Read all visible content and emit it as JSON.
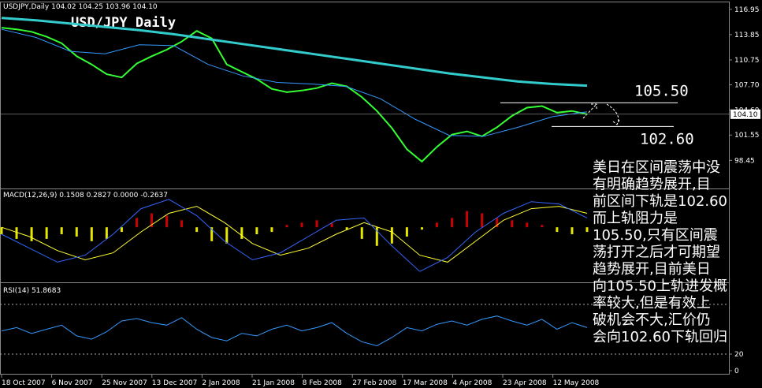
{
  "chart_data": [
    {
      "type": "line",
      "title": "USD/JPY Daily",
      "header": "USDJPY,Daily  104.02 104.25 103.96 104.10",
      "ylim": [
        95.1,
        117.8
      ],
      "yticks": [
        116.95,
        113.85,
        110.75,
        {
          "value": 107.7,
          "label": "107.70"
        },
        {
          "value": 104.6,
          "label": "104.60"
        },
        101.55,
        98.45
      ],
      "current": {
        "value": 104.1,
        "label": "104.10"
      },
      "levels": [
        {
          "value": 105.5,
          "label": "105.50"
        },
        {
          "value": 102.6,
          "label": "102.60"
        }
      ],
      "x_labels": [
        "18 Oct 2007",
        "6 Nov 2007",
        "25 Nov 2007",
        "13 Dec 2007",
        "2 Jan 2008",
        "21 Jan 2008",
        "8 Feb 2008",
        "27 Feb 2008",
        "17 Mar 2008",
        "4 Apr 2008",
        "23 Apr 2008",
        "12 May 2008"
      ],
      "series": [
        {
          "color": "#33ff33",
          "values": [
            114.7,
            114.5,
            114.2,
            113.6,
            112.8,
            111.2,
            110.2,
            109.0,
            108.6,
            110.3,
            111.2,
            112.0,
            113.0,
            114.3,
            113.4,
            110.2,
            109.3,
            108.4,
            107.2,
            106.8,
            107.0,
            107.3,
            107.9,
            107.5,
            106.2,
            104.5,
            102.4,
            99.8,
            98.3,
            100.1,
            101.6,
            102.0,
            101.4,
            102.5,
            103.9,
            104.9,
            105.1,
            104.3,
            104.5,
            104.1
          ]
        },
        {
          "color": "#33cccc",
          "values": [
            115.9,
            115.6,
            115.2,
            114.8,
            114.4,
            113.9,
            113.3,
            112.7,
            112.1,
            111.5,
            110.9,
            110.3,
            109.7,
            109.1,
            108.6,
            108.1,
            107.8,
            107.6
          ]
        },
        {
          "color": "#3399ff",
          "values": [
            114.5,
            113.5,
            111.8,
            111.5,
            112.6,
            112.5,
            110.2,
            108.8,
            108.0,
            107.8,
            107.5,
            106.0,
            103.5,
            101.5,
            101.4,
            102.5,
            103.8,
            104.4
          ]
        }
      ]
    },
    {
      "type": "macd",
      "header": "MACD(12,26,9) 0.1508 0.2827 0.0000 -0.2637",
      "ylim": [
        -2.3,
        1.6
      ],
      "up_color": "#cc0000",
      "down_color": "#e6e600",
      "histogram": [
        -0.3,
        -0.5,
        -0.6,
        -0.5,
        -0.3,
        -0.4,
        -0.6,
        -0.5,
        -0.2,
        0.4,
        0.6,
        0.5,
        0.3,
        -0.2,
        -0.6,
        -0.7,
        -0.5,
        -0.3,
        -0.2,
        0.1,
        0.2,
        0.3,
        0.2,
        -0.1,
        -0.5,
        -0.8,
        -0.7,
        -0.4,
        -0.1,
        0.2,
        0.4,
        0.7,
        0.6,
        0.4,
        0.3,
        0.2,
        0.1,
        -0.2,
        -0.3,
        -0.2
      ],
      "series": [
        {
          "color": "#ffff33",
          "values": [
            0.0,
            -0.4,
            -1.0,
            -1.4,
            -1.1,
            -0.2,
            0.6,
            0.9,
            0.2,
            -0.7,
            -1.2,
            -0.9,
            -0.3,
            0.2,
            -0.2,
            -1.2,
            -1.5,
            -0.6,
            0.3,
            0.8,
            0.9,
            0.6
          ]
        },
        {
          "color": "#3366ff",
          "values": [
            -0.3,
            -0.9,
            -1.5,
            -1.2,
            -0.3,
            0.8,
            1.2,
            0.5,
            -0.6,
            -1.4,
            -1.1,
            -0.4,
            0.3,
            0.4,
            -0.8,
            -1.9,
            -1.3,
            -0.2,
            0.6,
            1.1,
            1.0,
            0.4
          ]
        }
      ]
    },
    {
      "type": "rsi",
      "header": "RSI(14) 51.8683",
      "ylim": [
        0,
        100
      ],
      "yticks": [
        20,
        0
      ],
      "levels": [
        80,
        20
      ],
      "series": [
        {
          "color": "#3399ff",
          "values": [
            48,
            52,
            45,
            50,
            55,
            42,
            38,
            47,
            60,
            63,
            58,
            55,
            64,
            50,
            40,
            36,
            45,
            42,
            50,
            55,
            48,
            52,
            58,
            45,
            35,
            30,
            40,
            52,
            48,
            56,
            60,
            55,
            62,
            66,
            60,
            55,
            62,
            50,
            58,
            52
          ]
        }
      ]
    }
  ],
  "note": {
    "lines": [
      "美日在区间震荡中没",
      "有明确趋势展开,目",
      "前区间下轨是102.60",
      "而上轨阻力是",
      "105.50,只有区间震",
      "荡打开之后才可期望",
      "趋势展开,目前美日",
      "向105.50上轨进发概",
      "率较大,但是有效上",
      "破机会不大,汇价仍",
      "会向102.60下轨回归"
    ]
  }
}
